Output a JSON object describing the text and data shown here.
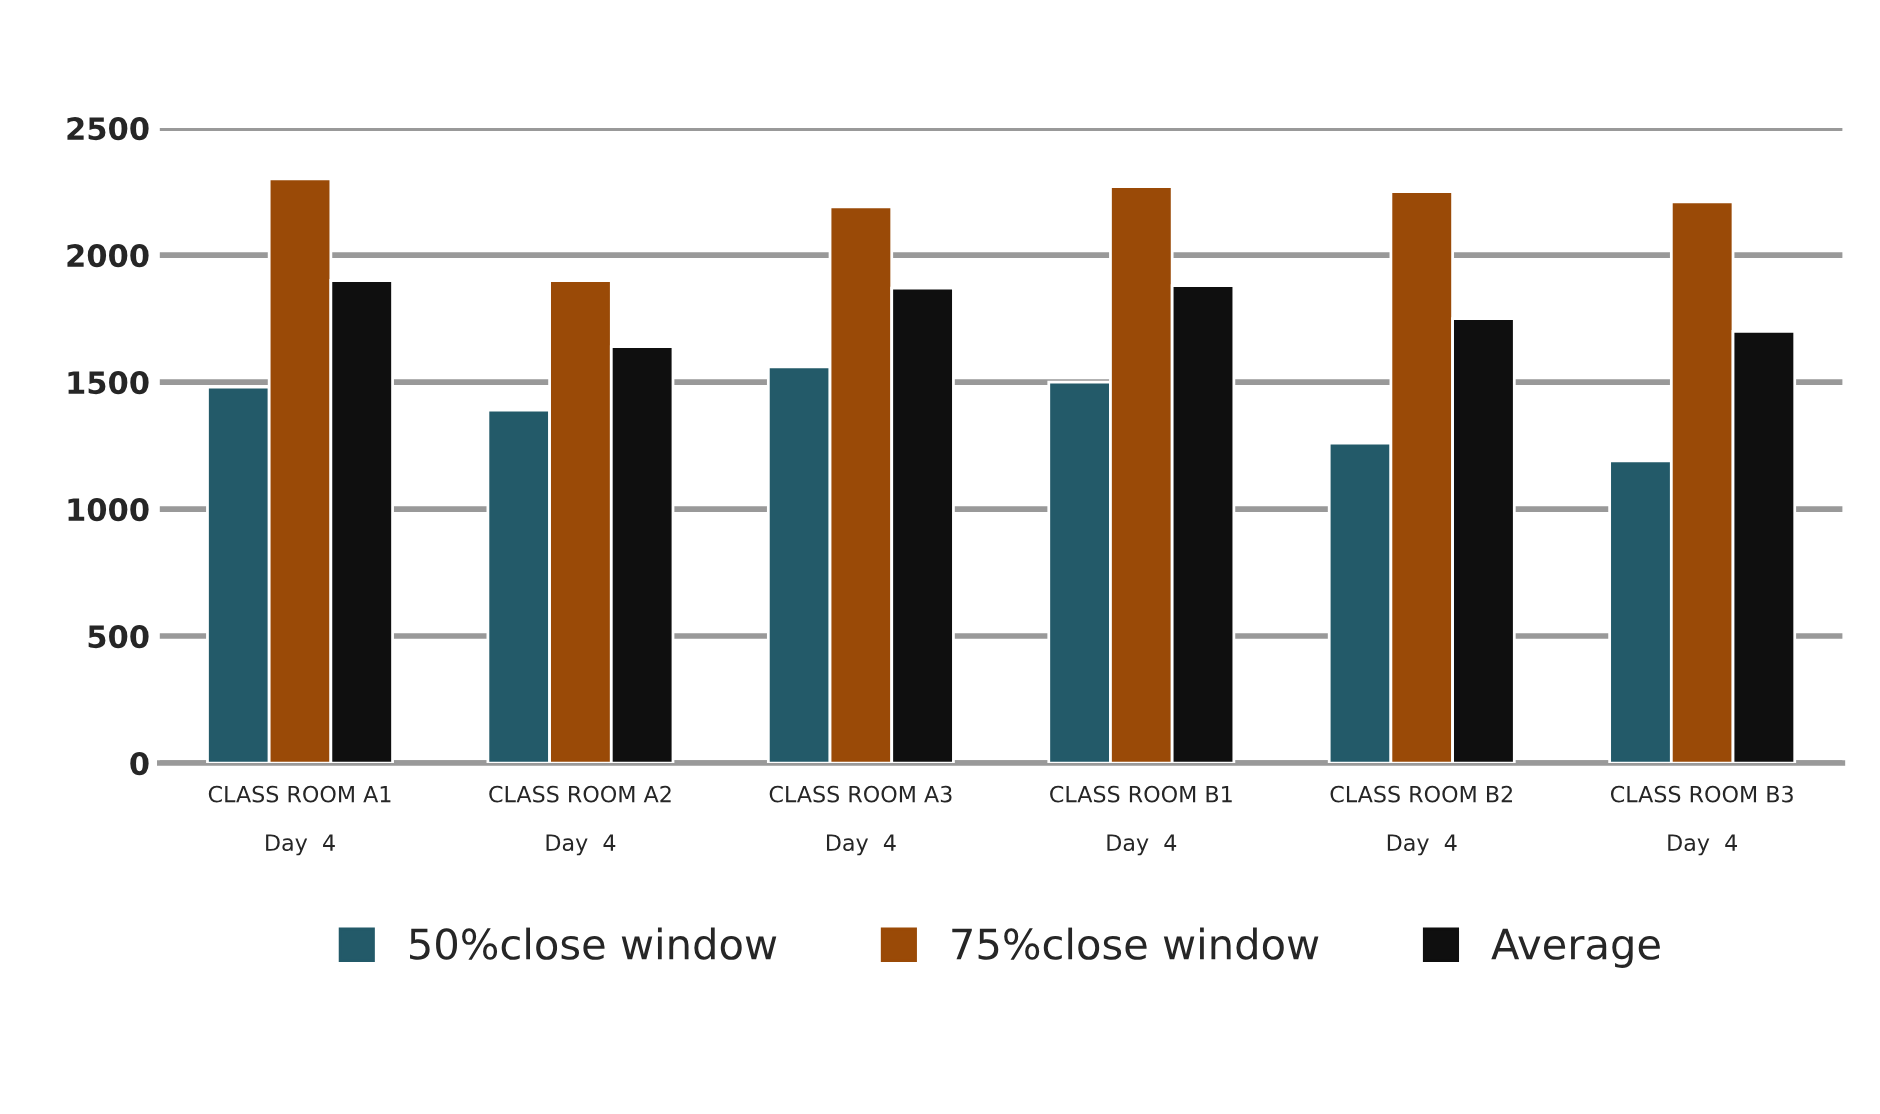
{
  "chart_data": {
    "type": "bar",
    "categories": [
      "CLASS ROOM A1\nDay  4",
      "CLASS ROOM A2\nDay  4",
      "CLASS ROOM A3\nDay  4",
      "CLASS ROOM B1\nDay  4",
      "CLASS ROOM B2\nDay  4",
      "CLASS ROOM B3\nDay  4"
    ],
    "series": [
      {
        "name": "50%close window",
        "color": "#235a69",
        "values": [
          1480,
          1390,
          1560,
          1500,
          1260,
          1190
        ]
      },
      {
        "name": "75%close window",
        "color": "#9a4a07",
        "values": [
          2300,
          1900,
          2190,
          2270,
          2250,
          2210
        ]
      },
      {
        "name": "Average",
        "color": "#0f0f0f",
        "values": [
          1900,
          1640,
          1870,
          1880,
          1750,
          1700
        ]
      }
    ],
    "ylim": [
      0,
      2500
    ],
    "yticks": [
      0,
      500,
      1000,
      1500,
      2000,
      2500
    ],
    "grid": "y",
    "legend": "bottom"
  }
}
